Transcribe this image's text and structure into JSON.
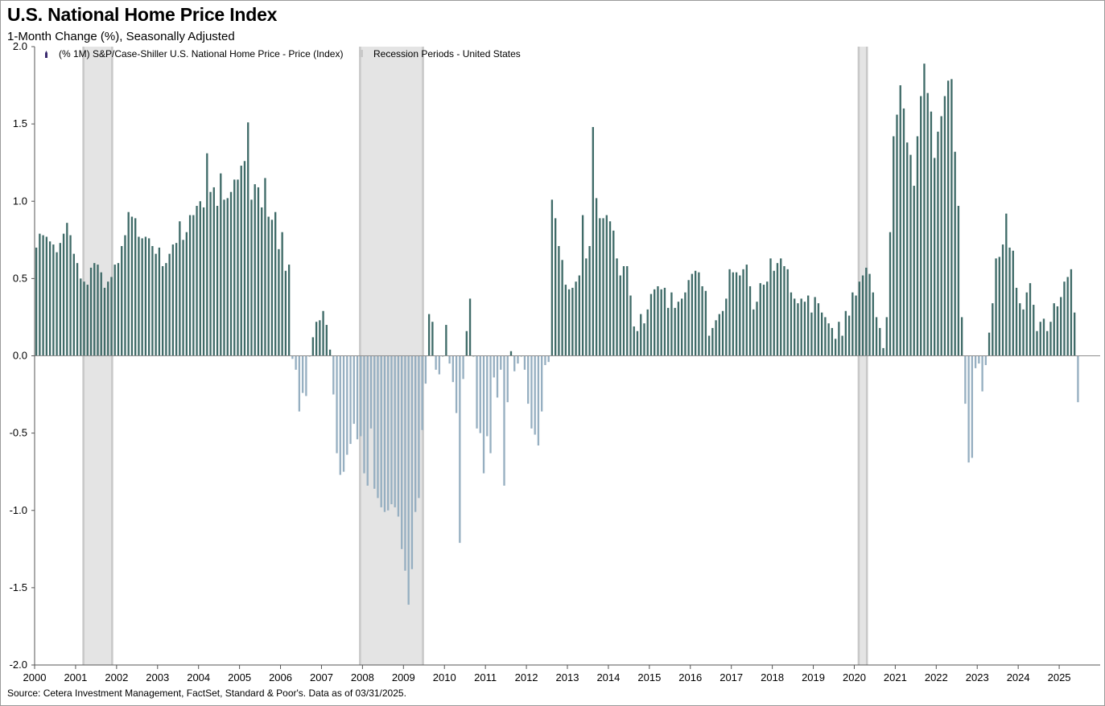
{
  "title": "U.S. National Home Price Index",
  "subtitle": "1-Month Change (%), Seasonally Adjusted",
  "source": "Source: Cetera Investment Management, FactSet, Standard & Poor's. Data as of 03/31/2025.",
  "colors": {
    "positive": "#3f6b68",
    "negative": "#96afc1",
    "recession": "#e4e4e4",
    "recession_edge": "#c8c8c8",
    "legend_marker": "#3a2a6e"
  },
  "chart_data": {
    "type": "bar",
    "title": "U.S. National Home Price Index",
    "subtitle": "1-Month Change (%), Seasonally Adjusted",
    "xlabel": "",
    "ylabel": "",
    "ylim": [
      -2.0,
      2.0
    ],
    "xlim": [
      2000.0,
      2026.0
    ],
    "y_ticks": [
      "2.0",
      "1.5",
      "1.0",
      "0.5",
      "0.0",
      "-0.5",
      "-1.0",
      "-1.5",
      "-2.0"
    ],
    "x_ticks": [
      "2000",
      "2001",
      "2002",
      "2003",
      "2004",
      "2005",
      "2006",
      "2007",
      "2008",
      "2009",
      "2010",
      "2011",
      "2012",
      "2013",
      "2014",
      "2015",
      "2016",
      "2017",
      "2018",
      "2019",
      "2020",
      "2021",
      "2022",
      "2023",
      "2024",
      "2025"
    ],
    "grid": false,
    "legend_position": "top-left",
    "frequency": "monthly",
    "start": "2000-01",
    "series": [
      {
        "name": "(% 1M) S&P/Case-Shiller U.S. National Home Price - Price (Index)",
        "values": [
          0.7,
          0.79,
          0.78,
          0.77,
          0.74,
          0.72,
          0.67,
          0.73,
          0.79,
          0.86,
          0.78,
          0.66,
          0.6,
          0.5,
          0.48,
          0.46,
          0.57,
          0.6,
          0.59,
          0.54,
          0.44,
          0.48,
          0.51,
          0.59,
          0.6,
          0.71,
          0.78,
          0.93,
          0.9,
          0.89,
          0.77,
          0.76,
          0.77,
          0.76,
          0.71,
          0.66,
          0.7,
          0.58,
          0.6,
          0.66,
          0.72,
          0.73,
          0.87,
          0.75,
          0.8,
          0.91,
          0.91,
          0.97,
          1.0,
          0.96,
          1.31,
          1.06,
          1.09,
          0.97,
          1.18,
          1.01,
          1.02,
          1.06,
          1.14,
          1.14,
          1.23,
          1.26,
          1.51,
          1.01,
          1.11,
          1.09,
          0.96,
          1.15,
          0.9,
          0.88,
          0.93,
          0.69,
          0.8,
          0.55,
          0.59,
          -0.02,
          -0.09,
          -0.36,
          -0.24,
          -0.26,
          0.0,
          0.12,
          0.22,
          0.23,
          0.29,
          0.2,
          0.04,
          -0.25,
          -0.63,
          -0.77,
          -0.75,
          -0.64,
          -0.57,
          -0.44,
          -0.54,
          -0.52,
          -0.76,
          -0.84,
          -0.47,
          -0.86,
          -0.92,
          -0.98,
          -1.01,
          -1.0,
          -0.96,
          -0.98,
          -1.04,
          -1.25,
          -1.39,
          -1.61,
          -1.38,
          -1.01,
          -0.92,
          -0.48,
          -0.18,
          0.27,
          0.22,
          -0.09,
          -0.12,
          0.0,
          0.2,
          -0.05,
          -0.17,
          -0.37,
          -1.21,
          -0.15,
          0.16,
          0.37,
          0.0,
          -0.47,
          -0.5,
          -0.76,
          -0.52,
          -0.63,
          -0.14,
          -0.27,
          -0.09,
          -0.84,
          -0.3,
          0.03,
          -0.1,
          -0.05,
          0.0,
          -0.09,
          -0.31,
          -0.47,
          -0.51,
          -0.58,
          -0.36,
          -0.06,
          -0.04,
          1.01,
          0.89,
          0.71,
          0.62,
          0.46,
          0.43,
          0.44,
          0.48,
          0.52,
          0.91,
          0.63,
          0.71,
          1.48,
          1.02,
          0.89,
          0.89,
          0.91,
          0.87,
          0.81,
          0.63,
          0.52,
          0.58,
          0.58,
          0.39,
          0.19,
          0.16,
          0.27,
          0.21,
          0.3,
          0.4,
          0.43,
          0.45,
          0.43,
          0.44,
          0.31,
          0.41,
          0.31,
          0.35,
          0.37,
          0.41,
          0.49,
          0.53,
          0.55,
          0.54,
          0.45,
          0.42,
          0.13,
          0.18,
          0.23,
          0.27,
          0.29,
          0.37,
          0.56,
          0.54,
          0.54,
          0.52,
          0.56,
          0.59,
          0.45,
          0.3,
          0.35,
          0.47,
          0.46,
          0.48,
          0.63,
          0.55,
          0.6,
          0.63,
          0.58,
          0.56,
          0.41,
          0.37,
          0.34,
          0.37,
          0.35,
          0.39,
          0.28,
          0.38,
          0.34,
          0.28,
          0.25,
          0.21,
          0.18,
          0.11,
          0.22,
          0.13,
          0.29,
          0.26,
          0.41,
          0.39,
          0.48,
          0.52,
          0.57,
          0.53,
          0.41,
          0.25,
          0.18,
          0.05,
          0.25,
          0.8,
          1.42,
          1.56,
          1.75,
          1.6,
          1.38,
          1.3,
          1.1,
          1.42,
          1.68,
          1.89,
          1.7,
          1.58,
          1.28,
          1.45,
          1.55,
          1.68,
          1.78,
          1.79,
          1.32,
          0.97,
          0.25,
          -0.31,
          -0.69,
          -0.66,
          -0.08,
          -0.05,
          -0.23,
          -0.06,
          0.15,
          0.34,
          0.63,
          0.64,
          0.72,
          0.92,
          0.7,
          0.68,
          0.44,
          0.34,
          0.3,
          0.41,
          0.47,
          0.33,
          0.16,
          0.22,
          0.24,
          0.16,
          0.22,
          0.34,
          0.32,
          0.38,
          0.48,
          0.51,
          0.56,
          0.28,
          -0.3
        ]
      },
      {
        "name": "Recession Periods - United States",
        "periods": [
          [
            "2001-03",
            "2001-11"
          ],
          [
            "2007-12",
            "2009-06"
          ],
          [
            "2020-02",
            "2020-04"
          ]
        ]
      }
    ]
  }
}
